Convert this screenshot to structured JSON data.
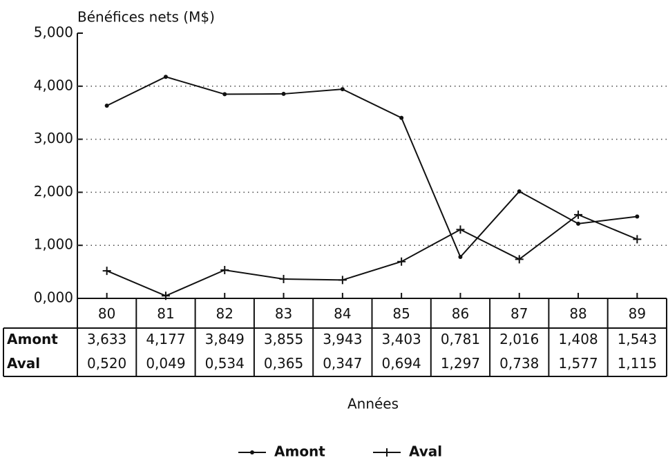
{
  "chart_data": {
    "type": "line",
    "y_axis_label": "Bénéfices nets (M$)",
    "x_axis_label": "Années",
    "categories": [
      "80",
      "81",
      "82",
      "83",
      "84",
      "85",
      "86",
      "87",
      "88",
      "89"
    ],
    "series": [
      {
        "name": "Amont",
        "color": "#111111",
        "marker": "dot",
        "values": [
          3.633,
          4.177,
          3.849,
          3.855,
          3.943,
          3.403,
          0.781,
          2.016,
          1.408,
          1.543
        ],
        "value_labels": [
          "3,633",
          "4,177",
          "3,849",
          "3,855",
          "3,943",
          "3,403",
          "0,781",
          "2,016",
          "1,408",
          "1,543"
        ]
      },
      {
        "name": "Aval",
        "color": "#111111",
        "marker": "plus",
        "values": [
          0.52,
          0.049,
          0.534,
          0.365,
          0.347,
          0.694,
          1.297,
          0.738,
          1.577,
          1.115
        ],
        "value_labels": [
          "0,520",
          "0,049",
          "0,534",
          "0,365",
          "0,347",
          "0,694",
          "1,297",
          "0,738",
          "1,577",
          "1,115"
        ]
      }
    ],
    "ylim": [
      0,
      5
    ],
    "yticks": [
      {
        "value": 0,
        "label": "0,000"
      },
      {
        "value": 1,
        "label": "1,000"
      },
      {
        "value": 2,
        "label": "2,000"
      },
      {
        "value": 3,
        "label": "3,000"
      },
      {
        "value": 4,
        "label": "4,000"
      },
      {
        "value": 5,
        "label": "5,000"
      }
    ],
    "grid": true
  }
}
